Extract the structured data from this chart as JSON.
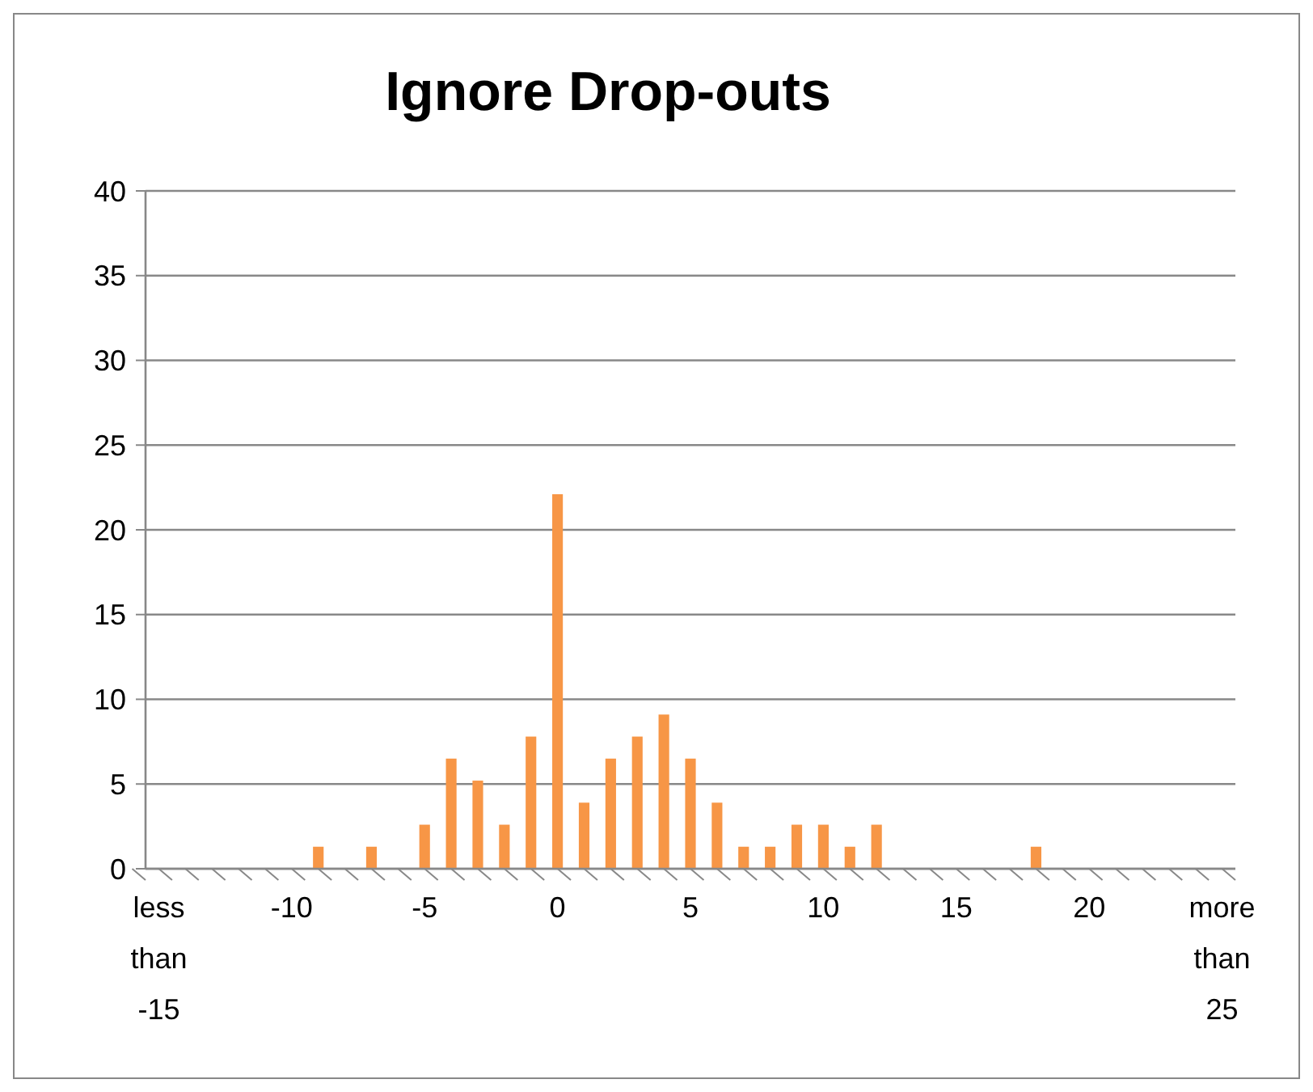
{
  "chart_data": {
    "type": "bar",
    "title": "Ignore Drop-outs",
    "categories": [
      "less than -15",
      null,
      null,
      null,
      null,
      "-10",
      null,
      null,
      null,
      null,
      "-5",
      null,
      null,
      null,
      null,
      "0",
      null,
      null,
      null,
      null,
      "5",
      null,
      null,
      null,
      null,
      "10",
      null,
      null,
      null,
      null,
      "15",
      null,
      null,
      null,
      null,
      "20",
      null,
      null,
      null,
      null,
      "more than 25"
    ],
    "values": [
      0,
      0,
      0,
      0,
      0,
      0,
      1.3,
      0,
      1.3,
      0,
      2.6,
      6.5,
      5.2,
      2.6,
      7.8,
      22.1,
      3.9,
      6.5,
      7.8,
      9.1,
      6.5,
      3.9,
      1.3,
      1.3,
      2.6,
      2.6,
      1.3,
      2.6,
      0,
      0,
      0,
      0,
      0,
      1.3,
      0,
      0,
      0,
      0,
      0,
      0,
      0
    ],
    "color": "#f79646",
    "ylim": [
      0,
      40
    ],
    "yticks": [
      0,
      5,
      10,
      15,
      20,
      25,
      30,
      35,
      40
    ],
    "grid": "y"
  }
}
